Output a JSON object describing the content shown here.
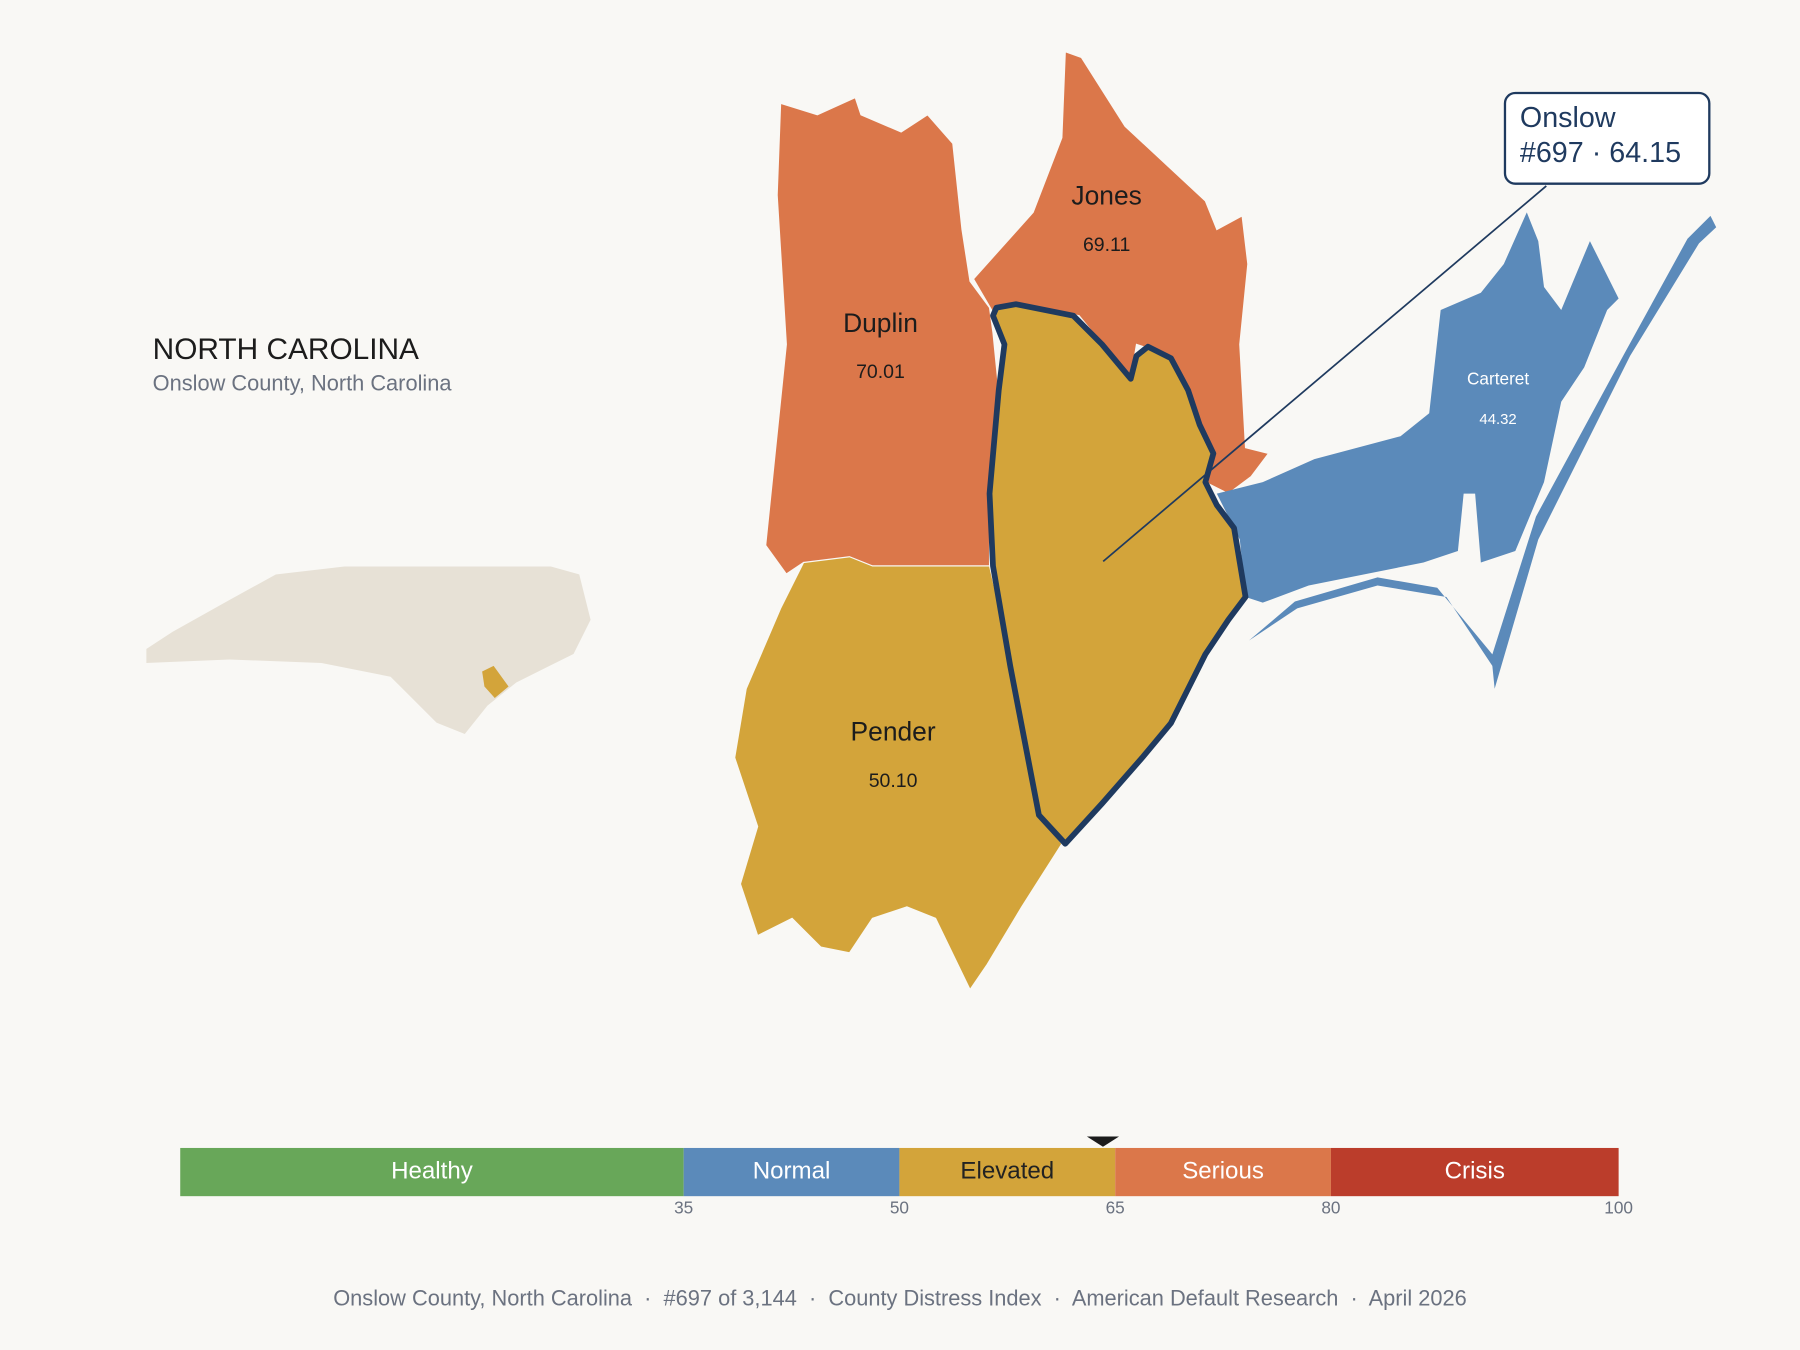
{
  "header": {
    "title": "NORTH CAROLINA",
    "subtitle": "Onslow County, North Carolina"
  },
  "counties": [
    {
      "name": "Duplin",
      "score": "70.01"
    },
    {
      "name": "Jones",
      "score": "69.11"
    },
    {
      "name": "Pender",
      "score": "50.10"
    },
    {
      "name": "Carteret",
      "score": "44.32"
    }
  ],
  "callout": {
    "name": "Onslow",
    "rank": "#697",
    "separator": "·",
    "score": 64.15
  },
  "scale": {
    "range": [
      0,
      100
    ],
    "ticks": [
      35,
      50,
      65,
      80,
      100
    ],
    "bands": [
      {
        "label": "Healthy",
        "color": "#68a759",
        "text_color": "#ffffff"
      },
      {
        "label": "Normal",
        "color": "#5b8aba",
        "text_color": "#ffffff"
      },
      {
        "label": "Elevated",
        "color": "#d3a43a",
        "text_color": "#222222"
      },
      {
        "label": "Serious",
        "color": "#db774a",
        "text_color": "#ffffff"
      },
      {
        "label": "Crisis",
        "color": "#bb3d2b",
        "text_color": "#ffffff"
      }
    ]
  },
  "footer": "Onslow County, North Carolina  ·  #697 of 3,144  ·  County Distress Index  ·  American Default Research  ·  April 2026"
}
